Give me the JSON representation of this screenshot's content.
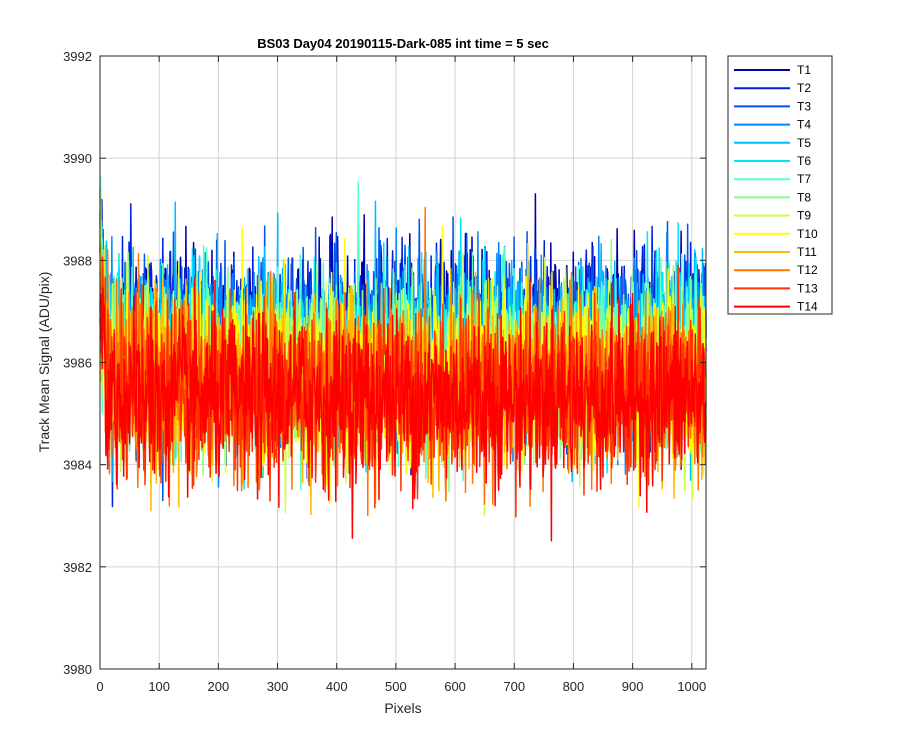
{
  "chart_data": {
    "type": "line",
    "title": "BS03 Day04 20190115-Dark-085 int time = 5 sec",
    "xlabel": "Pixels",
    "ylabel": "Track Mean Signal (ADU/pix)",
    "xlim": [
      0,
      1024
    ],
    "ylim": [
      3980,
      3992
    ],
    "xticks": [
      0,
      100,
      200,
      300,
      400,
      500,
      600,
      700,
      800,
      900,
      1000
    ],
    "yticks": [
      3980,
      3982,
      3984,
      3986,
      3988,
      3990,
      3992
    ],
    "grid": true,
    "legend_position": "outside-top-right",
    "n_points": 1024,
    "series": [
      {
        "name": "T1",
        "color": "#0000aa",
        "mean": 3986.6,
        "spread": 1.1
      },
      {
        "name": "T2",
        "color": "#0022dd",
        "mean": 3986.5,
        "spread": 1.1
      },
      {
        "name": "T3",
        "color": "#0055ee",
        "mean": 3986.4,
        "spread": 1.1
      },
      {
        "name": "T4",
        "color": "#0088ff",
        "mean": 3986.3,
        "spread": 1.1
      },
      {
        "name": "T5",
        "color": "#00bbff",
        "mean": 3986.2,
        "spread": 1.1
      },
      {
        "name": "T6",
        "color": "#00e5ff",
        "mean": 3986.1,
        "spread": 1.1
      },
      {
        "name": "T7",
        "color": "#55ffcc",
        "mean": 3986.0,
        "spread": 1.1
      },
      {
        "name": "T8",
        "color": "#88ff88",
        "mean": 3985.9,
        "spread": 1.1
      },
      {
        "name": "T9",
        "color": "#ccff44",
        "mean": 3985.8,
        "spread": 1.1
      },
      {
        "name": "T10",
        "color": "#ffff00",
        "mean": 3985.7,
        "spread": 1.1
      },
      {
        "name": "T11",
        "color": "#ffbb00",
        "mean": 3985.6,
        "spread": 1.1
      },
      {
        "name": "T12",
        "color": "#ff7700",
        "mean": 3985.5,
        "spread": 1.1
      },
      {
        "name": "T13",
        "color": "#ff3300",
        "mean": 3985.4,
        "spread": 1.1
      },
      {
        "name": "T14",
        "color": "#ff0000",
        "mean": 3985.3,
        "spread": 1.1
      }
    ]
  }
}
